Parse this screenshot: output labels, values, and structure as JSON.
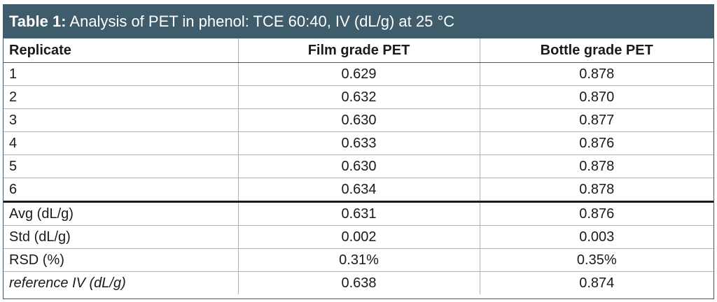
{
  "table": {
    "caption_label": "Table 1:",
    "caption_text": " Analysis of PET in phenol: TCE 60:40, IV (dL/g) at 25 °C",
    "headers": [
      "Replicate",
      "Film grade PET",
      "Bottle grade PET"
    ],
    "rows": [
      [
        "1",
        "0.629",
        "0.878"
      ],
      [
        "2",
        "0.632",
        "0.870"
      ],
      [
        "3",
        "0.630",
        "0.877"
      ],
      [
        "4",
        "0.633",
        "0.876"
      ],
      [
        "5",
        "0.630",
        "0.878"
      ],
      [
        "6",
        "0.634",
        "0.878"
      ]
    ],
    "summary": [
      [
        "Avg (dL/g)",
        "0.631",
        "0.876"
      ],
      [
        "Std (dL/g)",
        "0.002",
        "0.003"
      ],
      [
        "RSD (%)",
        "0.31%",
        "0.35%"
      ],
      [
        "reference IV (dL/g)",
        "0.638",
        "0.874"
      ]
    ],
    "header_color": "#3e5c6b"
  }
}
